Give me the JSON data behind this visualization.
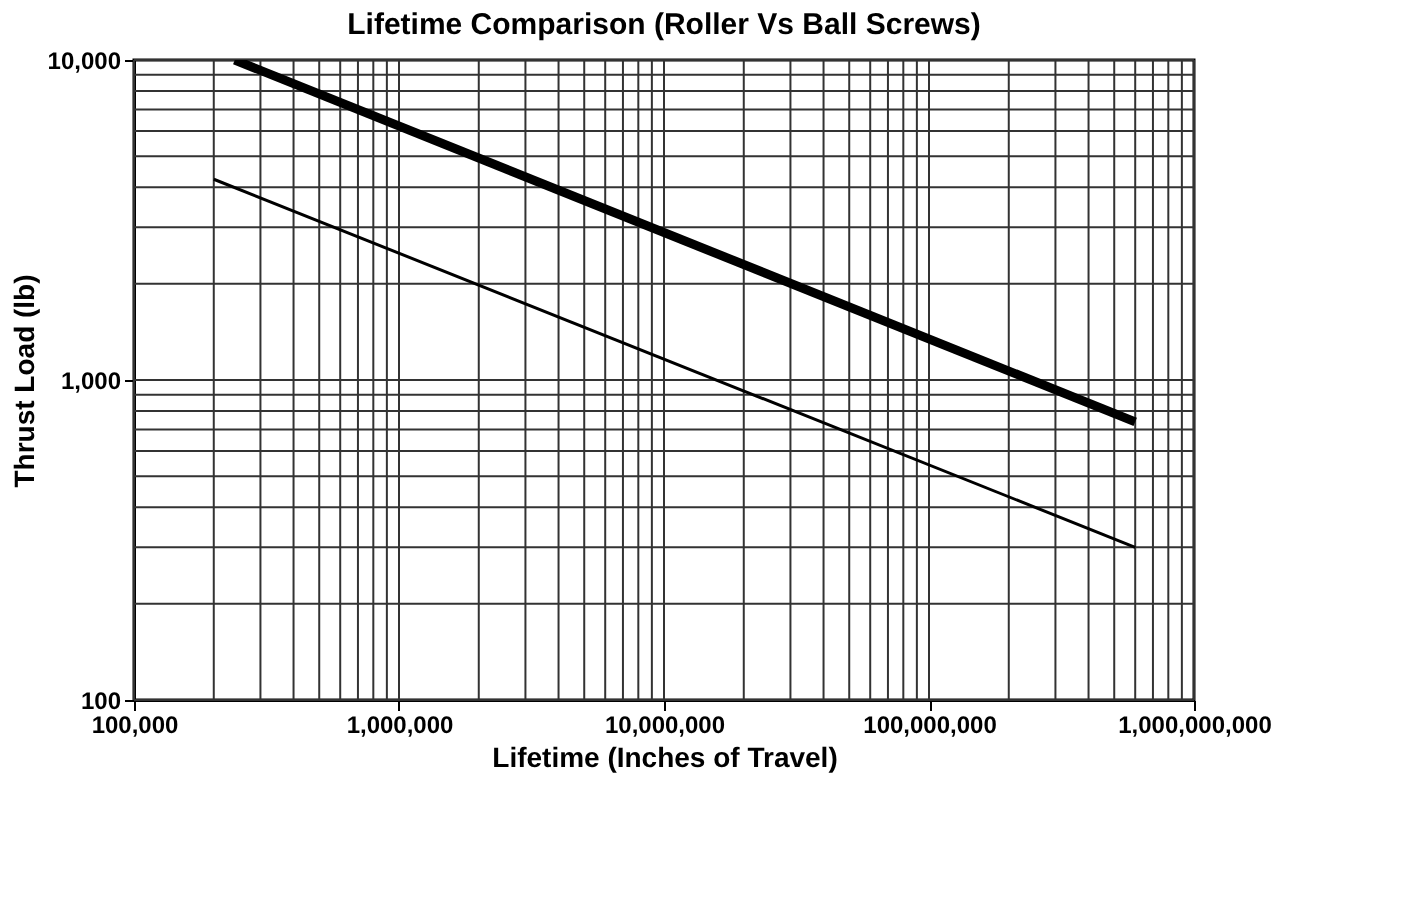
{
  "chart_data": {
    "type": "line",
    "title": "Lifetime Comparison (Roller Vs Ball Screws)",
    "xlabel": "Lifetime (Inches of Travel)",
    "ylabel": "Thrust Load (lb)",
    "log": "xy",
    "grid": true,
    "xlim": [
      100000,
      1000000000
    ],
    "xticks": [
      {
        "value": 100000,
        "label": "100,000"
      },
      {
        "value": 1000000,
        "label": "1,000,000"
      },
      {
        "value": 10000000,
        "label": "10,000,000"
      },
      {
        "value": 100000000,
        "label": "100,000,000"
      },
      {
        "value": 1000000000,
        "label": "1,000,000,000"
      }
    ],
    "ylim": [
      100,
      10000
    ],
    "yticks": [
      100,
      {
        "value": 1000,
        "label": "1,000"
      },
      {
        "value": 10000,
        "label": "10,000"
      }
    ],
    "series": [
      {
        "color": "#000000",
        "x": [
          240000,
          600000000
        ],
        "values": [
          10000,
          740
        ]
      },
      {
        "color": "#000000",
        "x": [
          200000,
          600000000
        ],
        "values": [
          4240,
          300
        ]
      }
    ]
  }
}
